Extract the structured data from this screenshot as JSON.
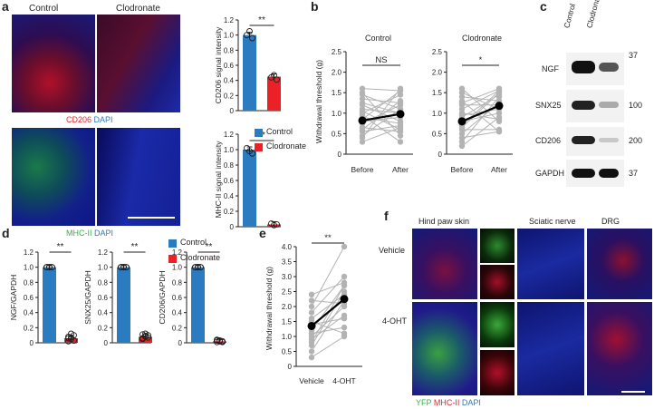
{
  "panels": {
    "a": "a",
    "b": "b",
    "c": "c",
    "d": "d",
    "e": "e",
    "f": "f"
  },
  "panel_a": {
    "col_control": "Control",
    "col_clodronate": "Clodronate",
    "stain1_marker": "CD206",
    "stain1_dapi": " DAPI",
    "stain2_marker": "MHC-II",
    "stain2_dapi": " DAPI"
  },
  "panel_b": {
    "title_control": "Control",
    "title_clodronate": "Clodronate"
  },
  "panel_c": {
    "lanes": [
      "Control",
      "Clodronate"
    ],
    "bands": [
      "NGF",
      "SNX25",
      "CD206",
      "GAPDH"
    ],
    "mw": [
      "37",
      "100",
      "200",
      "37"
    ]
  },
  "panel_f": {
    "cols": [
      "Hind paw skin",
      "Sciatic nerve",
      "DRG"
    ],
    "rows": [
      "Vehicle",
      "4-OHT"
    ],
    "legend_yfp": "YFP",
    "legend_mhc": " MHC-II",
    "legend_dapi": " DAPI"
  },
  "colors": {
    "control": "#2b7bc1",
    "clodronate": "#ec2127",
    "gray": "#b3b3b3"
  },
  "legend_d": {
    "control": "Control",
    "clodronate": "Clodronate"
  },
  "chart_data": [
    {
      "id": "a-top",
      "type": "bar",
      "categories": [
        "Control",
        "Clodronate"
      ],
      "values": [
        1.0,
        0.45
      ],
      "ylabel": "CD206 signal intensity",
      "yticks": [
        "0",
        "0.2",
        "0.4",
        "0.6",
        "0.8",
        "1.0",
        "1.2"
      ],
      "ylim": [
        0,
        1.2
      ],
      "sig": "**",
      "colors": [
        "#2b7bc1",
        "#ec2127"
      ]
    },
    {
      "id": "a-bottom",
      "type": "bar",
      "categories": [
        "Control",
        "Clodronate"
      ],
      "values": [
        1.0,
        0.03
      ],
      "ylabel": "MHC-II signal intensity",
      "yticks": [
        "0",
        "0.2",
        "0.4",
        "0.6",
        "0.8",
        "1.0",
        "1.2"
      ],
      "ylim": [
        0,
        1.2
      ],
      "sig": "**",
      "colors": [
        "#2b7bc1",
        "#ec2127"
      ]
    },
    {
      "id": "b-control",
      "type": "line",
      "title": "Control",
      "x": [
        "Before",
        "After"
      ],
      "mean": [
        0.82,
        0.98
      ],
      "ylabel": "Withdrawal threshold (g)",
      "yticks": [
        "0",
        "0.5",
        "1.0",
        "1.5",
        "2.0",
        "2.5"
      ],
      "ylim": [
        0,
        2.5
      ],
      "sig": "NS"
    },
    {
      "id": "b-clodronate",
      "type": "line",
      "title": "Clodronate",
      "x": [
        "Before",
        "After"
      ],
      "mean": [
        0.8,
        1.18
      ],
      "yticks": [
        "0",
        "0.5",
        "1.0",
        "1.5",
        "2.0",
        "2.5"
      ],
      "ylim": [
        0,
        2.5
      ],
      "sig": "*"
    },
    {
      "id": "d-ngf",
      "type": "bar",
      "categories": [
        "Control",
        "Clodronate"
      ],
      "values": [
        1.0,
        0.06
      ],
      "ylabel": "NGF/GAPDH",
      "yticks": [
        "0",
        "0.2",
        "0.4",
        "0.6",
        "0.8",
        "1.0",
        "1.2"
      ],
      "ylim": [
        0,
        1.2
      ],
      "sig": "**"
    },
    {
      "id": "d-snx25",
      "type": "bar",
      "categories": [
        "Control",
        "Clodronate"
      ],
      "values": [
        1.0,
        0.08
      ],
      "ylabel": "SNX25/GAPDH",
      "yticks": [
        "0",
        "0.2",
        "0.4",
        "0.6",
        "0.8",
        "1.0",
        "1.2"
      ],
      "ylim": [
        0,
        1.2
      ],
      "sig": "**"
    },
    {
      "id": "d-cd206",
      "type": "bar",
      "categories": [
        "Control",
        "Clodronate"
      ],
      "values": [
        1.0,
        0.02
      ],
      "ylabel": "CD206/GAPDH",
      "yticks": [
        "0",
        "0.2",
        "0.4",
        "0.6",
        "0.8",
        "1.0",
        "1.2"
      ],
      "ylim": [
        0,
        1.2
      ],
      "sig": "**"
    },
    {
      "id": "e",
      "type": "line",
      "x": [
        "Vehicle",
        "4-OHT"
      ],
      "mean": [
        1.35,
        2.25
      ],
      "ylabel": "Withdrawal threshold (g)",
      "yticks": [
        "0",
        "0.5",
        "1.0",
        "1.5",
        "2.0",
        "2.5",
        "3.0",
        "3.5",
        "4.0"
      ],
      "ylim": [
        0,
        4.0
      ],
      "sig": "**"
    }
  ]
}
